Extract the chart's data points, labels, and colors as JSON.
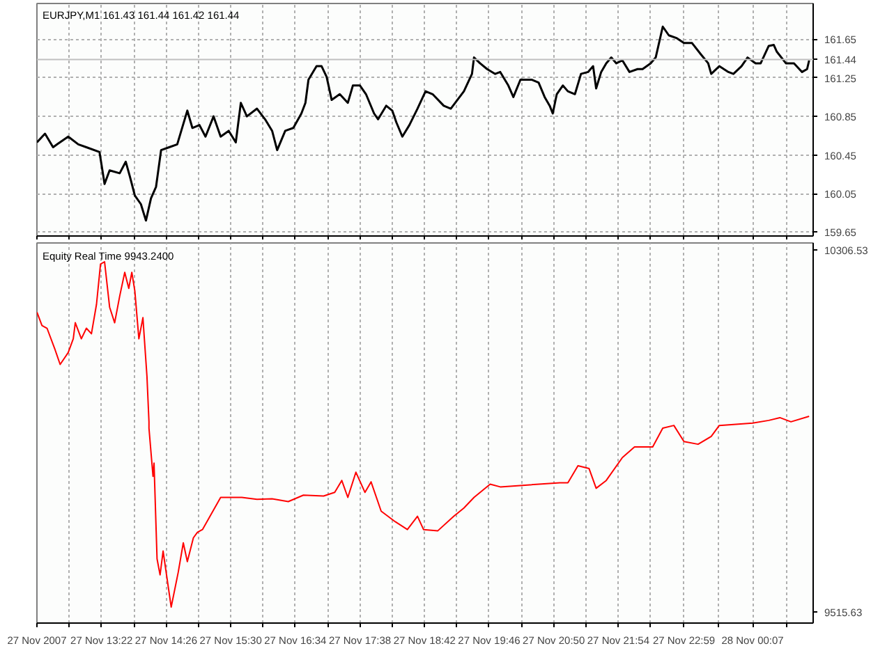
{
  "chart_data": [
    {
      "type": "line",
      "title": "EURJPY,M1  161.43 161.44 161.42 161.44",
      "xlim": [
        "2007-11-27T12:18",
        "2007-11-28T01:07"
      ],
      "ylim": [
        159.61,
        162.02
      ],
      "xticks": [
        {
          "value": "2007-11-27T12:18",
          "label": null
        },
        {
          "value": "2007-11-27T12:50",
          "label": null
        },
        {
          "value": "2007-11-27T13:22",
          "label": null
        },
        {
          "value": "2007-11-27T13:54",
          "label": null
        },
        {
          "value": "2007-11-27T14:26",
          "label": null
        },
        {
          "value": "2007-11-27T14:58",
          "label": null
        },
        {
          "value": "2007-11-27T15:30",
          "label": null
        },
        {
          "value": "2007-11-27T16:02",
          "label": null
        },
        {
          "value": "2007-11-27T16:34",
          "label": null
        },
        {
          "value": "2007-11-27T17:06",
          "label": null
        },
        {
          "value": "2007-11-27T17:38",
          "label": null
        },
        {
          "value": "2007-11-27T18:10",
          "label": null
        },
        {
          "value": "2007-11-27T18:42",
          "label": null
        },
        {
          "value": "2007-11-27T19:14",
          "label": null
        },
        {
          "value": "2007-11-27T19:46",
          "label": null
        },
        {
          "value": "2007-11-27T20:18",
          "label": null
        },
        {
          "value": "2007-11-27T20:50",
          "label": null
        },
        {
          "value": "2007-11-27T21:22",
          "label": null
        },
        {
          "value": "2007-11-27T21:54",
          "label": null
        },
        {
          "value": "2007-11-27T22:26",
          "label": null
        },
        {
          "value": "2007-11-27T22:59",
          "label": null
        },
        {
          "value": "2007-11-27T23:33",
          "label": null
        },
        {
          "value": "2007-11-28T00:07",
          "label": null
        },
        {
          "value": "2007-11-28T00:41",
          "label": null
        }
      ],
      "yticks": [
        159.65,
        160.05,
        160.45,
        160.85,
        161.25,
        161.65
      ],
      "grid": true,
      "tick_labels": "y",
      "ref_lines": [
        {
          "axis": "y",
          "value": 161.44,
          "label": "161.44",
          "color": "#c0c0c0"
        }
      ],
      "series": [
        {
          "color": "#000000",
          "x": [
            "2007-11-27T12:18",
            "2007-11-27T12:26",
            "2007-11-27T12:34",
            "2007-11-27T12:38",
            "2007-11-27T12:49",
            "2007-11-27T12:59",
            "2007-11-27T13:07",
            "2007-11-27T13:20",
            "2007-11-27T13:25",
            "2007-11-27T13:30",
            "2007-11-27T13:40",
            "2007-11-27T13:46",
            "2007-11-27T13:50",
            "2007-11-27T13:55",
            "2007-11-27T14:01",
            "2007-11-27T14:06",
            "2007-11-27T14:11",
            "2007-11-27T14:16",
            "2007-11-27T14:21",
            "2007-11-27T14:29",
            "2007-11-27T14:37",
            "2007-11-27T14:41",
            "2007-11-27T14:47",
            "2007-11-27T14:52",
            "2007-11-27T14:59",
            "2007-11-27T15:05",
            "2007-11-27T15:13",
            "2007-11-27T15:20",
            "2007-11-27T15:28",
            "2007-11-27T15:35",
            "2007-11-27T15:40",
            "2007-11-27T15:46",
            "2007-11-27T15:56",
            "2007-11-27T16:04",
            "2007-11-27T16:11",
            "2007-11-27T16:16",
            "2007-11-27T16:24",
            "2007-11-27T16:32",
            "2007-11-27T16:40",
            "2007-11-27T16:44",
            "2007-11-27T16:47",
            "2007-11-27T16:55",
            "2007-11-27T17:00",
            "2007-11-27T17:05",
            "2007-11-27T17:10",
            "2007-11-27T17:18",
            "2007-11-27T17:26",
            "2007-11-27T17:31",
            "2007-11-27T17:38",
            "2007-11-27T17:44",
            "2007-11-27T17:52",
            "2007-11-27T17:56",
            "2007-11-27T18:04",
            "2007-11-27T18:10",
            "2007-11-27T18:14",
            "2007-11-27T18:20",
            "2007-11-27T18:27",
            "2007-11-27T18:35",
            "2007-11-27T18:43",
            "2007-11-27T18:50",
            "2007-11-27T19:01",
            "2007-11-27T19:08",
            "2007-11-27T19:21",
            "2007-11-27T19:29",
            "2007-11-27T19:31",
            "2007-11-27T19:37",
            "2007-11-27T19:44",
            "2007-11-27T19:52",
            "2007-11-27T19:57",
            "2007-11-27T20:05",
            "2007-11-27T20:10",
            "2007-11-27T20:17",
            "2007-11-27T20:28",
            "2007-11-27T20:35",
            "2007-11-27T20:41",
            "2007-11-27T20:46",
            "2007-11-27T20:49",
            "2007-11-27T20:53",
            "2007-11-27T20:59",
            "2007-11-27T21:04",
            "2007-11-27T21:11",
            "2007-11-27T21:17",
            "2007-11-27T21:24",
            "2007-11-27T21:29",
            "2007-11-27T21:32",
            "2007-11-27T21:37",
            "2007-11-27T21:42",
            "2007-11-27T21:47",
            "2007-11-27T21:52",
            "2007-11-27T21:58",
            "2007-11-27T22:05",
            "2007-11-27T22:13",
            "2007-11-27T22:18",
            "2007-11-27T22:26",
            "2007-11-27T22:31",
            "2007-11-27T22:38",
            "2007-11-27T22:44",
            "2007-11-27T22:52",
            "2007-11-27T22:59",
            "2007-11-27T23:07",
            "2007-11-27T23:16",
            "2007-11-27T23:23",
            "2007-11-27T23:26",
            "2007-11-27T23:34",
            "2007-11-27T23:43",
            "2007-11-27T23:48",
            "2007-11-27T23:56",
            "2007-11-28T00:02",
            "2007-11-28T00:10",
            "2007-11-28T00:15",
            "2007-11-28T00:23",
            "2007-11-28T00:28",
            "2007-11-28T00:31",
            "2007-11-28T00:40",
            "2007-11-28T00:48",
            "2007-11-28T00:56",
            "2007-11-28T01:01",
            "2007-11-28T01:03"
          ],
          "values": [
            160.58,
            160.67,
            160.53,
            160.56,
            160.64,
            160.56,
            160.53,
            160.48,
            160.15,
            160.29,
            160.26,
            160.38,
            160.23,
            160.03,
            159.94,
            159.77,
            160.0,
            160.12,
            160.5,
            160.53,
            160.56,
            160.7,
            160.91,
            160.73,
            160.76,
            160.64,
            160.85,
            160.64,
            160.7,
            160.58,
            160.99,
            160.85,
            160.93,
            160.82,
            160.7,
            160.5,
            160.7,
            160.73,
            160.88,
            160.99,
            161.23,
            161.37,
            161.37,
            161.26,
            161.02,
            161.08,
            160.99,
            161.17,
            161.17,
            161.08,
            160.88,
            160.82,
            160.96,
            160.91,
            160.79,
            160.64,
            160.76,
            160.93,
            161.11,
            161.08,
            160.96,
            160.93,
            161.11,
            161.29,
            161.46,
            161.4,
            161.34,
            161.29,
            161.31,
            161.17,
            161.05,
            161.23,
            161.23,
            161.2,
            161.05,
            160.96,
            160.88,
            161.08,
            161.17,
            161.11,
            161.08,
            161.29,
            161.31,
            161.37,
            161.14,
            161.31,
            161.4,
            161.46,
            161.4,
            161.43,
            161.31,
            161.34,
            161.34,
            161.4,
            161.46,
            161.78,
            161.69,
            161.66,
            161.61,
            161.61,
            161.49,
            161.4,
            161.29,
            161.37,
            161.31,
            161.29,
            161.37,
            161.46,
            161.4,
            161.4,
            161.58,
            161.59,
            161.52,
            161.4,
            161.4,
            161.31,
            161.34,
            161.43
          ]
        }
      ]
    },
    {
      "type": "line",
      "title": "Equity Real Time 9943.2400",
      "xlim": [
        "2007-11-27T12:18",
        "2007-11-28T01:07"
      ],
      "ylim": [
        9492,
        10321
      ],
      "xticks": [
        {
          "value": "2007-11-27T12:18",
          "label": "27 Nov 2007"
        },
        {
          "value": "2007-11-27T12:50",
          "label": null
        },
        {
          "value": "2007-11-27T13:22",
          "label": "27 Nov 13:22"
        },
        {
          "value": "2007-11-27T13:54",
          "label": null
        },
        {
          "value": "2007-11-27T14:26",
          "label": "27 Nov 14:26"
        },
        {
          "value": "2007-11-27T14:58",
          "label": null
        },
        {
          "value": "2007-11-27T15:30",
          "label": "27 Nov 15:30"
        },
        {
          "value": "2007-11-27T16:02",
          "label": null
        },
        {
          "value": "2007-11-27T16:34",
          "label": "27 Nov 16:34"
        },
        {
          "value": "2007-11-27T17:06",
          "label": null
        },
        {
          "value": "2007-11-27T17:38",
          "label": "27 Nov 17:38"
        },
        {
          "value": "2007-11-27T18:10",
          "label": null
        },
        {
          "value": "2007-11-27T18:42",
          "label": "27 Nov 18:42"
        },
        {
          "value": "2007-11-27T19:14",
          "label": null
        },
        {
          "value": "2007-11-27T19:46",
          "label": "27 Nov 19:46"
        },
        {
          "value": "2007-11-27T20:18",
          "label": null
        },
        {
          "value": "2007-11-27T20:50",
          "label": "27 Nov 20:50"
        },
        {
          "value": "2007-11-27T21:22",
          "label": null
        },
        {
          "value": "2007-11-27T21:54",
          "label": "27 Nov 21:54"
        },
        {
          "value": "2007-11-27T22:26",
          "label": null
        },
        {
          "value": "2007-11-27T22:59",
          "label": "27 Nov 22:59"
        },
        {
          "value": "2007-11-27T23:33",
          "label": null
        },
        {
          "value": "2007-11-28T00:07",
          "label": "28 Nov 00:07"
        },
        {
          "value": "2007-11-28T00:41",
          "label": null
        }
      ],
      "yticks": [
        9515.63,
        10306.53
      ],
      "grid": "x",
      "series": [
        {
          "color": "#ff0000",
          "x": [
            "2007-11-27T12:18",
            "2007-11-27T12:23",
            "2007-11-27T12:28",
            "2007-11-27T12:36",
            "2007-11-27T12:41",
            "2007-11-27T12:49",
            "2007-11-27T12:54",
            "2007-11-27T12:56",
            "2007-11-27T13:02",
            "2007-11-27T13:07",
            "2007-11-27T13:12",
            "2007-11-27T13:17",
            "2007-11-27T13:21",
            "2007-11-27T13:25",
            "2007-11-27T13:30",
            "2007-11-27T13:35",
            "2007-11-27T13:40",
            "2007-11-27T13:45",
            "2007-11-27T13:49",
            "2007-11-27T13:52",
            "2007-11-27T13:55",
            "2007-11-27T13:59",
            "2007-11-27T14:03",
            "2007-11-27T14:07",
            "2007-11-27T14:09",
            "2007-11-27T14:09",
            "2007-11-27T14:13",
            "2007-11-27T14:14",
            "2007-11-27T14:17",
            "2007-11-27T14:20",
            "2007-11-27T14:23",
            "2007-11-27T14:26",
            "2007-11-27T14:31",
            "2007-11-27T14:38",
            "2007-11-27T14:43",
            "2007-11-27T14:47",
            "2007-11-27T14:53",
            "2007-11-27T14:57",
            "2007-11-27T15:02",
            "2007-11-27T15:20",
            "2007-11-27T15:41",
            "2007-11-27T15:56",
            "2007-11-27T16:11",
            "2007-11-27T16:27",
            "2007-11-27T16:42",
            "2007-11-27T17:02",
            "2007-11-27T17:13",
            "2007-11-27T17:20",
            "2007-11-27T17:26",
            "2007-11-27T17:34",
            "2007-11-27T17:43",
            "2007-11-27T17:49",
            "2007-11-27T17:59",
            "2007-11-27T18:13",
            "2007-11-27T18:25",
            "2007-11-27T18:35",
            "2007-11-27T18:41",
            "2007-11-27T18:55",
            "2007-11-27T19:11",
            "2007-11-27T19:21",
            "2007-11-27T19:31",
            "2007-11-27T19:47",
            "2007-11-27T19:57",
            "2007-11-27T20:56",
            "2007-11-27T21:04",
            "2007-11-27T21:14",
            "2007-11-27T21:25",
            "2007-11-27T21:32",
            "2007-11-27T21:42",
            "2007-11-27T21:58",
            "2007-11-27T22:10",
            "2007-11-27T22:28",
            "2007-11-27T22:38",
            "2007-11-27T22:49",
            "2007-11-27T22:59",
            "2007-11-27T23:13",
            "2007-11-27T23:26",
            "2007-11-27T23:34",
            "2007-11-28T00:07",
            "2007-11-28T00:23",
            "2007-11-28T00:34",
            "2007-11-28T00:45",
            "2007-11-28T01:03"
          ],
          "values": [
            10170,
            10141,
            10135,
            10088,
            10056,
            10082,
            10112,
            10147,
            10112,
            10135,
            10123,
            10187,
            10275,
            10280,
            10181,
            10147,
            10205,
            10257,
            10222,
            10257,
            10216,
            10112,
            10158,
            10030,
            9931,
            9917,
            9812,
            9841,
            9632,
            9597,
            9649,
            9603,
            9527,
            9603,
            9667,
            9626,
            9678,
            9690,
            9696,
            9766,
            9766,
            9762,
            9763,
            9757,
            9771,
            9769,
            9777,
            9803,
            9766,
            9821,
            9777,
            9800,
            9736,
            9713,
            9696,
            9725,
            9696,
            9693,
            9725,
            9743,
            9766,
            9795,
            9789,
            9798,
            9798,
            9835,
            9829,
            9786,
            9803,
            9853,
            9876,
            9876,
            9917,
            9923,
            9888,
            9882,
            9899,
            9923,
            9928,
            9934,
            9940,
            9931,
            9943
          ]
        }
      ]
    }
  ]
}
